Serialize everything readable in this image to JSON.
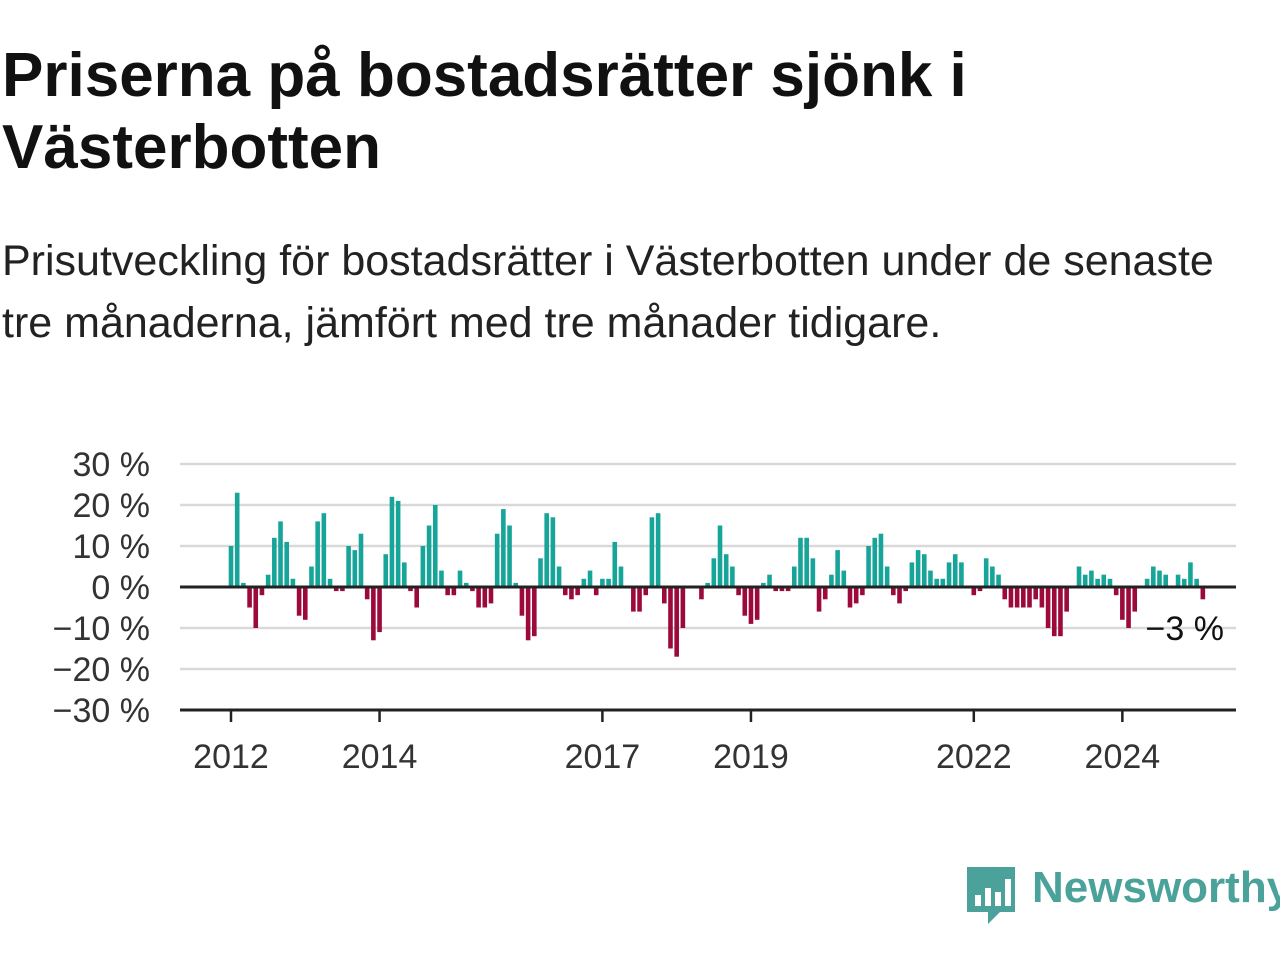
{
  "title": "Priserna på bostadsrätter sjönk i Västerbotten",
  "subtitle": "Prisutveckling för bostadsrätter i Västerbotten under de senaste tre månaderna, jämfört med tre månader tidigare.",
  "logo": {
    "text": "Newsworthy",
    "icon": "newsworthy-chart-bubble-icon",
    "color": "#4aa29a"
  },
  "chart_data": {
    "type": "bar",
    "title": "",
    "xlabel": "",
    "ylabel": "",
    "unit": "%",
    "ylim": [
      -30,
      30
    ],
    "yticks": [
      {
        "value": 30,
        "label": "30 %"
      },
      {
        "value": 20,
        "label": "20 %"
      },
      {
        "value": 10,
        "label": "10 %"
      },
      {
        "value": 0,
        "label": "0 %"
      },
      {
        "value": -10,
        "label": "−10 %"
      },
      {
        "value": -20,
        "label": "−20 %"
      },
      {
        "value": -30,
        "label": "−30 %"
      }
    ],
    "xticks": [
      {
        "value": "2012-01",
        "label": "2012"
      },
      {
        "value": "2014-01",
        "label": "2014"
      },
      {
        "value": "2017-01",
        "label": "2017"
      },
      {
        "value": "2019-01",
        "label": "2019"
      },
      {
        "value": "2022-01",
        "label": "2022"
      },
      {
        "value": "2024-01",
        "label": "2024"
      }
    ],
    "grid": true,
    "colors": {
      "positive": "#17a599",
      "negative": "#9c0a3c",
      "grid": "#d9d9d9",
      "axis": "#222222"
    },
    "last_value_label": "−3 %",
    "start_month": "2012-01",
    "values": [
      10,
      23,
      1,
      -5,
      -10,
      -2,
      3,
      12,
      16,
      11,
      2,
      -7,
      -8,
      5,
      16,
      18,
      2,
      -1,
      -1,
      10,
      9,
      13,
      -3,
      -13,
      -11,
      8,
      22,
      21,
      6,
      -1,
      -5,
      10,
      15,
      20,
      4,
      -2,
      -2,
      4,
      1,
      -1,
      -5,
      -5,
      -4,
      13,
      19,
      15,
      1,
      -7,
      -13,
      -12,
      7,
      18,
      17,
      5,
      -2,
      -3,
      -2,
      2,
      4,
      -2,
      2,
      2,
      11,
      5,
      0,
      -6,
      -6,
      -2,
      17,
      18,
      -4,
      -15,
      -17,
      -10,
      0,
      0,
      -3,
      1,
      7,
      15,
      8,
      5,
      -2,
      -7,
      -9,
      -8,
      1,
      3,
      -1,
      -1,
      -1,
      5,
      12,
      12,
      7,
      -6,
      -3,
      3,
      9,
      4,
      -5,
      -4,
      -2,
      10,
      12,
      13,
      5,
      -2,
      -4,
      -1,
      6,
      9,
      8,
      4,
      2,
      2,
      6,
      8,
      6,
      0,
      -2,
      -1,
      7,
      5,
      3,
      -3,
      -5,
      -5,
      -5,
      -5,
      -3,
      -5,
      -10,
      -12,
      -12,
      -6,
      0,
      5,
      3,
      4,
      2,
      3,
      2,
      -2,
      -8,
      -10,
      -6,
      0,
      2,
      5,
      4,
      3,
      0,
      3,
      2,
      6,
      2,
      -3
    ]
  }
}
